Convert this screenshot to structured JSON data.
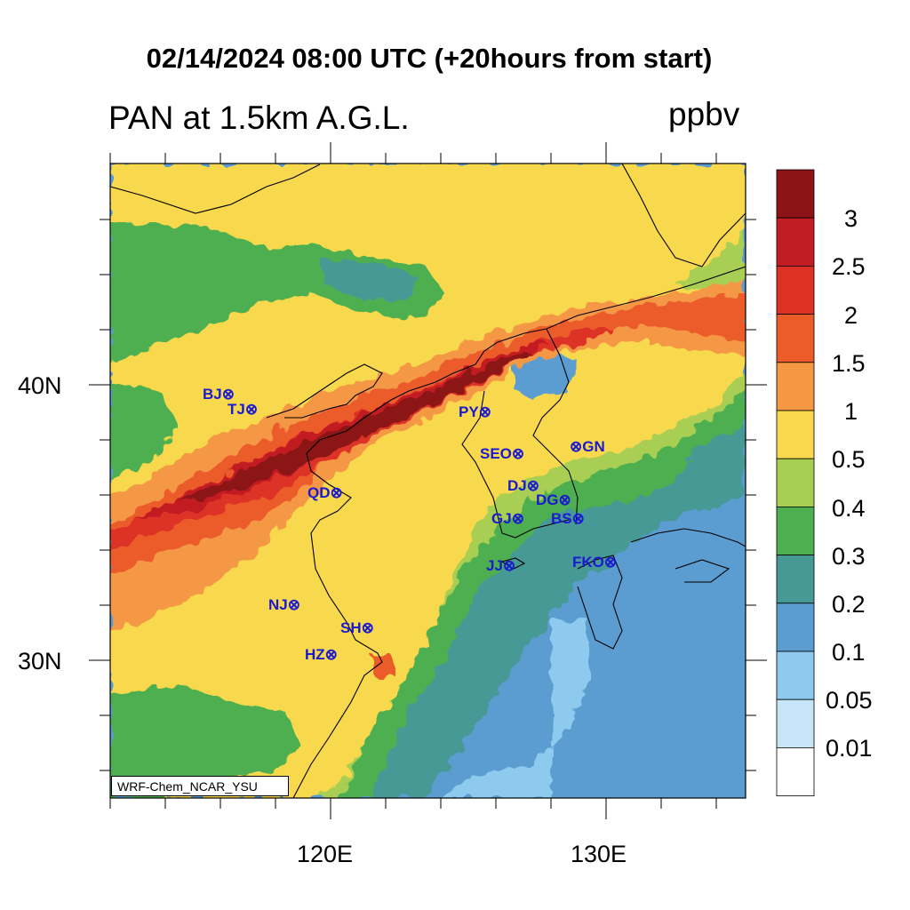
{
  "header": {
    "title": "02/14/2024 08:00 UTC (+20hours from start)",
    "variable": "PAN at 1.5km A.G.L.",
    "units": "ppbv"
  },
  "axes": {
    "lon_ticks": [
      "120E",
      "130E"
    ],
    "lat_ticks": [
      "40N",
      "30N"
    ]
  },
  "colorbar": {
    "labels": [
      "3",
      "2.5",
      "2",
      "1.5",
      "1",
      "0.5",
      "0.4",
      "0.3",
      "0.2",
      "0.1",
      "0.05",
      "0.01"
    ],
    "colors": [
      "#8c1417",
      "#c21d22",
      "#dd3126",
      "#ec5c2b",
      "#f49844",
      "#f8d84e",
      "#a8cf52",
      "#4daf4f",
      "#479996",
      "#5b9dd1",
      "#8ec9ee",
      "#c6e6f7",
      "#ffffff"
    ]
  },
  "cities": [
    {
      "label": "BJ"
    },
    {
      "label": "TJ"
    },
    {
      "label": "PY"
    },
    {
      "label": "SEO"
    },
    {
      "label": "GN"
    },
    {
      "label": "QD"
    },
    {
      "label": "DJ"
    },
    {
      "label": "DG"
    },
    {
      "label": "GJ"
    },
    {
      "label": "BS"
    },
    {
      "label": "JJ"
    },
    {
      "label": "FKO"
    },
    {
      "label": "NJ"
    },
    {
      "label": "SH"
    },
    {
      "label": "HZ"
    }
  ],
  "credit": "WRF-Chem_NCAR_YSU"
}
